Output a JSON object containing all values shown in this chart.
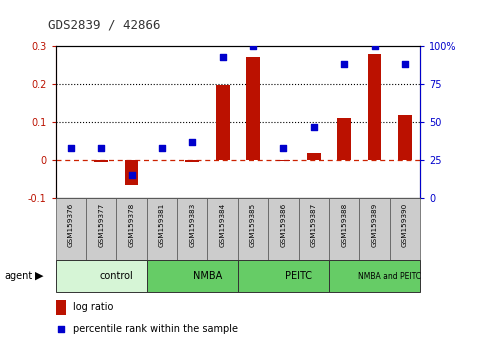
{
  "title": "GDS2839 / 42866",
  "samples": [
    "GSM159376",
    "GSM159377",
    "GSM159378",
    "GSM159381",
    "GSM159383",
    "GSM159384",
    "GSM159385",
    "GSM159386",
    "GSM159387",
    "GSM159388",
    "GSM159389",
    "GSM159390"
  ],
  "log_ratio": [
    0.0,
    -0.005,
    -0.065,
    0.0,
    -0.005,
    0.197,
    0.272,
    -0.002,
    0.018,
    0.112,
    0.278,
    0.12
  ],
  "percentile_rank_right": [
    33,
    33,
    15,
    33,
    37,
    93,
    100,
    33,
    47,
    88,
    100,
    88
  ],
  "groups": [
    {
      "label": "control",
      "start": 0,
      "end": 3,
      "color": "#d6f5d6"
    },
    {
      "label": "NMBA",
      "start": 3,
      "end": 6,
      "color": "#66cc66"
    },
    {
      "label": "PEITC",
      "start": 6,
      "end": 9,
      "color": "#66cc66"
    },
    {
      "label": "NMBA and PEITC",
      "start": 9,
      "end": 12,
      "color": "#66cc66"
    }
  ],
  "ylim_left": [
    -0.1,
    0.3
  ],
  "ylim_right": [
    0,
    100
  ],
  "bar_color": "#bb1100",
  "dot_color": "#0000cc",
  "hline_color": "#cc2200",
  "grid_color": "#000000",
  "sample_box_color": "#cccccc",
  "plot_bg": "#ffffff"
}
